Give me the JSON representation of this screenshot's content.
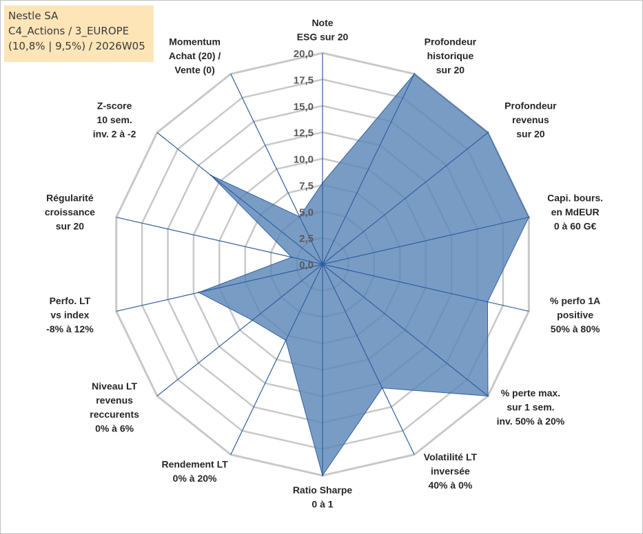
{
  "info_box": {
    "line1": "Nestle SA",
    "line2": "C4_Actions / 3_EUROPE",
    "line3": "(10,8% | 9,5%) / 2026W05"
  },
  "colors": {
    "fill": "#5b86b8",
    "stroke": "#2f5fa0",
    "spokes": "#2f5fa0",
    "grid": "#c8c8c8",
    "info_box": "#fde5b8"
  },
  "chart_data": {
    "type": "radar",
    "rmin": 0,
    "rmax": 20,
    "ticks": [
      "0,0",
      "2,5",
      "5,0",
      "7,5",
      "10,0",
      "12,5",
      "15,0",
      "17,5",
      "20,0"
    ],
    "categories": [
      [
        "Note",
        "ESG sur 20"
      ],
      [
        "Profondeur",
        "historique",
        "sur 20"
      ],
      [
        "Profondeur",
        "revenus",
        "sur 20"
      ],
      [
        "Capi. bours.",
        "en MdEUR",
        "0 à 60 G€"
      ],
      [
        "% perfo 1A",
        "positive",
        "50% à 80%"
      ],
      [
        "% perte max.",
        "sur 1 sem.",
        "inv. 50% à 20%"
      ],
      [
        "Volatilité LT",
        "inversée",
        "40% à 0%"
      ],
      [
        "Ratio Sharpe",
        "0 à 1"
      ],
      [
        "Rendement LT",
        "0% à 20%"
      ],
      [
        "Niveau LT",
        "revenus",
        "reccurents",
        "0% à 6%"
      ],
      [
        "Perfo. LT",
        "vs index",
        "-8% à 12%"
      ],
      [
        "Régularité",
        "croissance",
        "sur 20"
      ],
      [
        "Z-score",
        "10 sem.",
        "inv. 2 à -2"
      ],
      [
        "Momentum",
        "Achat (20) /",
        "Vente (0)"
      ]
    ],
    "series": [
      {
        "name": "Nestle SA",
        "values": [
          7.7,
          20,
          20,
          20,
          16,
          20,
          13,
          20,
          8,
          8.5,
          12,
          3,
          13.5,
          5
        ]
      }
    ]
  }
}
